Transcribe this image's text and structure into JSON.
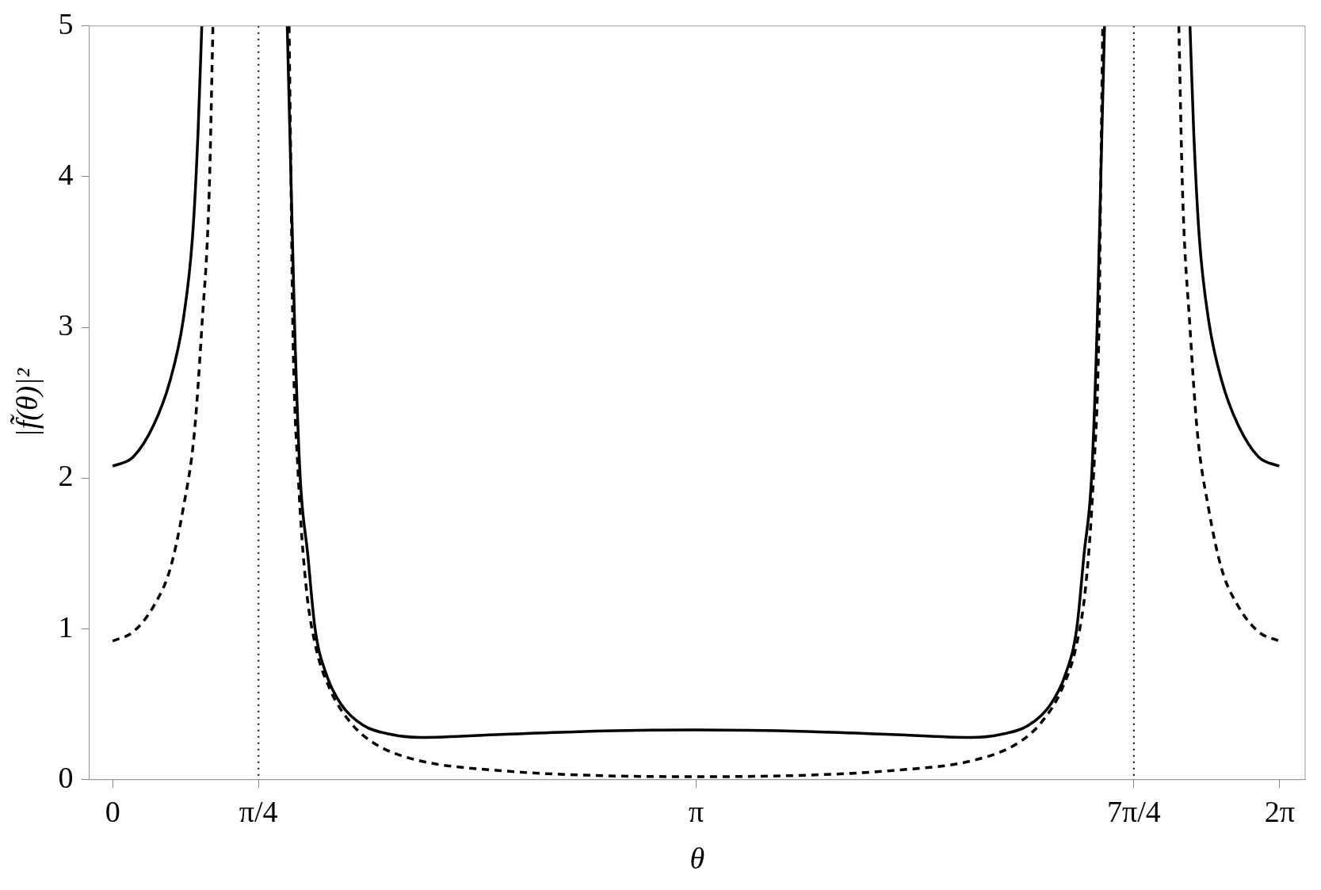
{
  "chart_data": {
    "type": "line",
    "xlabel": "θ",
    "ylabel": "|f̃(θ)|²",
    "xlim": [
      -0.126,
      6.42
    ],
    "ylim": [
      0,
      5
    ],
    "xticks": [
      0,
      {
        "value": 0.7854,
        "label": "π/4"
      },
      {
        "value": 3.1416,
        "label": "π"
      },
      {
        "value": 5.4978,
        "label": "7π/4"
      },
      {
        "value": 6.2832,
        "label": "2π"
      }
    ],
    "yticks": [
      0,
      1,
      2,
      3,
      4,
      5
    ],
    "grid": false,
    "legend": false,
    "ref_lines": [
      {
        "axis": "x",
        "value": 0.7854,
        "color": "#000000",
        "line_style": "dotted"
      },
      {
        "axis": "x",
        "value": 5.4978,
        "color": "#000000",
        "line_style": "dotted"
      }
    ],
    "series": [
      {
        "color": "#000000",
        "line_style": "solid",
        "x": [
          0,
          0.11,
          0.22,
          0.31,
          0.38,
          0.43,
          0.46,
          0.48,
          0.7,
          0.94,
          0.96,
          0.98,
          1.01,
          1.05,
          1.09,
          1.15,
          1.23,
          1.35,
          1.5,
          1.66,
          2.09,
          2.54,
          3.14,
          3.74,
          4.19,
          4.62,
          4.78,
          4.93,
          5.05,
          5.13,
          5.19,
          5.23,
          5.27,
          5.3,
          5.32,
          5.34,
          5.58,
          5.8,
          5.82,
          5.85,
          5.9,
          5.97,
          6.06,
          6.17,
          6.28
        ],
        "values": [
          2.08,
          2.14,
          2.35,
          2.65,
          3.05,
          3.6,
          4.3,
          5,
          null,
          5,
          4,
          3,
          2,
          1.5,
          1.0,
          0.7,
          0.5,
          0.36,
          0.3,
          0.28,
          0.3,
          0.32,
          0.33,
          0.32,
          0.3,
          0.28,
          0.3,
          0.36,
          0.5,
          0.7,
          1.0,
          1.5,
          2,
          3,
          4,
          5,
          null,
          5,
          4.3,
          3.6,
          3.05,
          2.65,
          2.35,
          2.14,
          2.08
        ]
      },
      {
        "color": "#000000",
        "line_style": "dashed",
        "x": [
          0,
          0.11,
          0.22,
          0.31,
          0.38,
          0.44,
          0.48,
          0.52,
          0.54,
          0.75,
          0.95,
          0.96,
          0.97,
          1.0,
          1.04,
          1.09,
          1.17,
          1.28,
          1.41,
          1.64,
          2.09,
          2.54,
          3.14,
          3.74,
          4.19,
          4.64,
          4.87,
          5.0,
          5.11,
          5.19,
          5.24,
          5.28,
          5.31,
          5.32,
          5.33,
          5.53,
          5.74,
          5.76,
          5.8,
          5.84,
          5.9,
          5.97,
          6.06,
          6.17,
          6.28
        ],
        "values": [
          0.92,
          0.98,
          1.15,
          1.4,
          1.8,
          2.3,
          3,
          3.9,
          5,
          null,
          5,
          4,
          3,
          2,
          1.3,
          0.9,
          0.6,
          0.38,
          0.24,
          0.13,
          0.06,
          0.03,
          0.02,
          0.03,
          0.06,
          0.13,
          0.24,
          0.38,
          0.6,
          0.9,
          1.3,
          2,
          3,
          4,
          5,
          null,
          5,
          3.9,
          3,
          2.3,
          1.8,
          1.4,
          1.15,
          0.98,
          0.92
        ]
      }
    ]
  }
}
